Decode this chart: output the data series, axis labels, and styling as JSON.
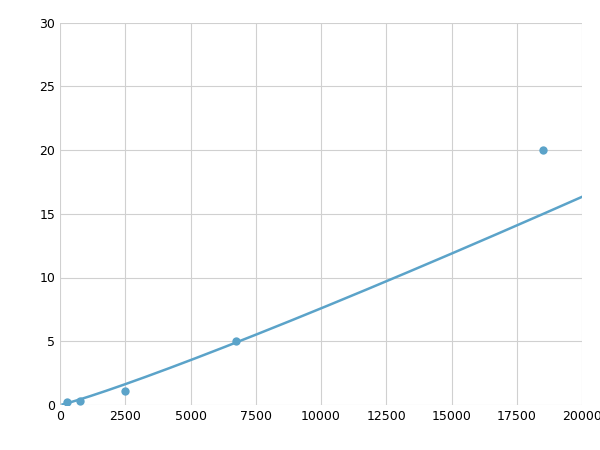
{
  "x": [
    250,
    750,
    2500,
    6750,
    18500
  ],
  "y": [
    0.2,
    0.3,
    1.1,
    5.0,
    20.0
  ],
  "line_color": "#5ba3c9",
  "marker_color": "#5ba3c9",
  "marker_size": 6,
  "line_width": 1.8,
  "xlim": [
    0,
    20000
  ],
  "ylim": [
    0,
    30
  ],
  "xticks": [
    0,
    2500,
    5000,
    7500,
    10000,
    12500,
    15000,
    17500,
    20000
  ],
  "yticks": [
    0,
    5,
    10,
    15,
    20,
    25,
    30
  ],
  "grid_color": "#d0d0d0",
  "bg_color": "#ffffff",
  "figure_bg": "#ffffff"
}
